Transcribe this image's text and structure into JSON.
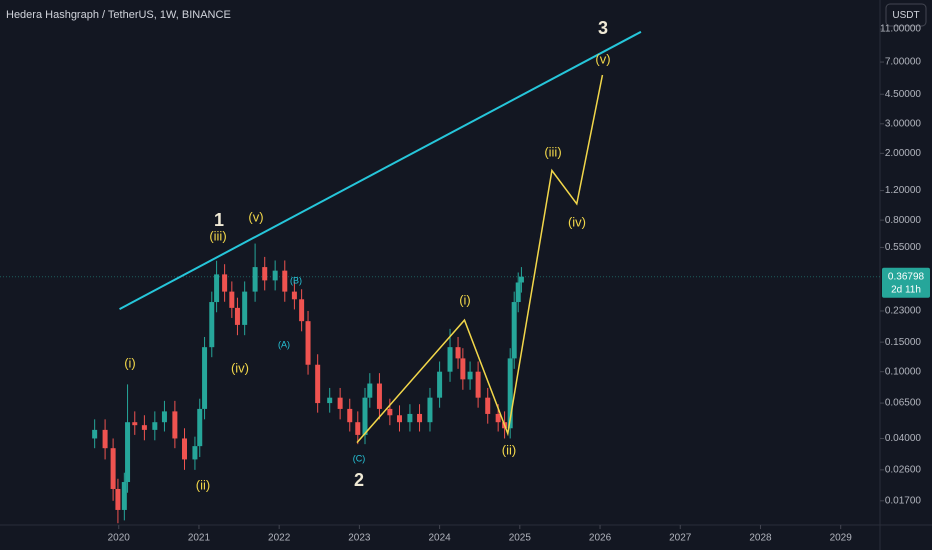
{
  "chart_data": {
    "type": "candlestick",
    "title": "Hedera Hashgraph / TetherUS, 1W, BINANCE",
    "currency": "USDT",
    "log_scale": true,
    "up_color": "#26a69a",
    "down_color": "#ef5350",
    "x": [
      2019.7,
      2019.83,
      2019.93,
      2019.99,
      2020.07,
      2020.11,
      2020.2,
      2020.32,
      2020.45,
      2020.57,
      2020.7,
      2020.82,
      2020.95,
      2021.01,
      2021.07,
      2021.16,
      2021.22,
      2021.32,
      2021.41,
      2021.48,
      2021.57,
      2021.7,
      2021.82,
      2021.95,
      2022.07,
      2022.19,
      2022.28,
      2022.36,
      2022.48,
      2022.63,
      2022.76,
      2022.88,
      2022.98,
      2023.07,
      2023.13,
      2023.25,
      2023.38,
      2023.5,
      2023.63,
      2023.75,
      2023.88,
      2024.0,
      2024.13,
      2024.23,
      2024.29,
      2024.38,
      2024.48,
      2024.6,
      2024.73,
      2024.81,
      2024.88,
      2024.93,
      2024.98,
      2025.02
    ],
    "open": [
      0.04,
      0.045,
      0.035,
      0.02,
      0.015,
      0.022,
      0.05,
      0.048,
      0.045,
      0.05,
      0.058,
      0.04,
      0.03,
      0.036,
      0.06,
      0.14,
      0.26,
      0.38,
      0.3,
      0.24,
      0.19,
      0.3,
      0.42,
      0.35,
      0.4,
      0.3,
      0.27,
      0.2,
      0.11,
      0.065,
      0.07,
      0.06,
      0.05,
      0.042,
      0.07,
      0.085,
      0.06,
      0.055,
      0.05,
      0.056,
      0.05,
      0.07,
      0.1,
      0.14,
      0.12,
      0.09,
      0.1,
      0.07,
      0.056,
      0.05,
      0.046,
      0.12,
      0.26,
      0.34
    ],
    "high": [
      0.052,
      0.052,
      0.04,
      0.023,
      0.025,
      0.084,
      0.058,
      0.055,
      0.058,
      0.067,
      0.067,
      0.046,
      0.041,
      0.069,
      0.161,
      0.3,
      0.458,
      0.437,
      0.345,
      0.276,
      0.345,
      0.58,
      0.483,
      0.46,
      0.46,
      0.345,
      0.31,
      0.23,
      0.127,
      0.08,
      0.08,
      0.069,
      0.058,
      0.08,
      0.098,
      0.098,
      0.069,
      0.063,
      0.064,
      0.064,
      0.08,
      0.115,
      0.18,
      0.161,
      0.138,
      0.115,
      0.115,
      0.08,
      0.064,
      0.058,
      0.138,
      0.3,
      0.39,
      0.42
    ],
    "low": [
      0.035,
      0.03,
      0.017,
      0.0125,
      0.013,
      0.019,
      0.042,
      0.039,
      0.039,
      0.044,
      0.035,
      0.026,
      0.026,
      0.031,
      0.052,
      0.122,
      0.226,
      0.261,
      0.209,
      0.165,
      0.165,
      0.261,
      0.305,
      0.305,
      0.261,
      0.235,
      0.174,
      0.096,
      0.057,
      0.057,
      0.052,
      0.044,
      0.037,
      0.037,
      0.061,
      0.052,
      0.048,
      0.044,
      0.044,
      0.044,
      0.044,
      0.061,
      0.087,
      0.104,
      0.078,
      0.078,
      0.061,
      0.049,
      0.044,
      0.04,
      0.04,
      0.104,
      0.226,
      0.296
    ],
    "close": [
      0.045,
      0.035,
      0.02,
      0.015,
      0.022,
      0.05,
      0.048,
      0.045,
      0.05,
      0.058,
      0.04,
      0.03,
      0.036,
      0.06,
      0.14,
      0.26,
      0.38,
      0.3,
      0.24,
      0.19,
      0.3,
      0.42,
      0.35,
      0.4,
      0.3,
      0.27,
      0.2,
      0.11,
      0.065,
      0.07,
      0.06,
      0.05,
      0.042,
      0.07,
      0.085,
      0.06,
      0.055,
      0.05,
      0.056,
      0.05,
      0.07,
      0.1,
      0.14,
      0.12,
      0.09,
      0.1,
      0.07,
      0.056,
      0.05,
      0.046,
      0.12,
      0.26,
      0.34,
      0.368
    ],
    "xlim": [
      2018.52,
      2029.49
    ],
    "ylim": [
      0.0122,
      16.4
    ],
    "xticks": [
      2020,
      2021,
      2022,
      2023,
      2024,
      2025,
      2026,
      2027,
      2028,
      2029
    ],
    "yticks": [
      {
        "value": 0.017,
        "label": "0.01700"
      },
      {
        "value": 0.026,
        "label": "0.02600"
      },
      {
        "value": 0.04,
        "label": "0.04000"
      },
      {
        "value": 0.065,
        "label": "0.06500"
      },
      {
        "value": 0.1,
        "label": "0.10000"
      },
      {
        "value": 0.15,
        "label": "0.15000"
      },
      {
        "value": 0.23,
        "label": "0.23000"
      },
      {
        "value": 0.55,
        "label": "0.55000"
      },
      {
        "value": 0.8,
        "label": "0.80000"
      },
      {
        "value": 1.2,
        "label": "1.20000"
      },
      {
        "value": 2,
        "label": "2.00000"
      },
      {
        "value": 3,
        "label": "3.00000"
      },
      {
        "value": 4.5,
        "label": "4.50000"
      },
      {
        "value": 7,
        "label": "7.00000"
      },
      {
        "value": 11,
        "label": "11.00000"
      }
    ],
    "last_price": {
      "value": 0.36798,
      "label": "0.36798"
    },
    "countdown": "2d 11h",
    "trendline": {
      "color": "#26c6da",
      "x": [
        2020.01,
        2026.51
      ],
      "y": [
        0.236,
        10.6
      ]
    },
    "wave_path": {
      "color": "#f2d74a",
      "x": [
        2022.97,
        2024.31,
        2024.85,
        2025.4,
        2025.71,
        2026.03
      ],
      "y": [
        0.0378,
        0.203,
        0.0428,
        1.58,
        1.0,
        5.86
      ]
    },
    "annotations": [
      "1",
      "(iii)",
      "(v)",
      "(iv)",
      "(i)",
      "(ii)",
      "(B)",
      "(A)",
      "(C)",
      "2",
      "(i)",
      "(ii)",
      "(iii)",
      "(iv)",
      "(v)",
      "3"
    ]
  }
}
